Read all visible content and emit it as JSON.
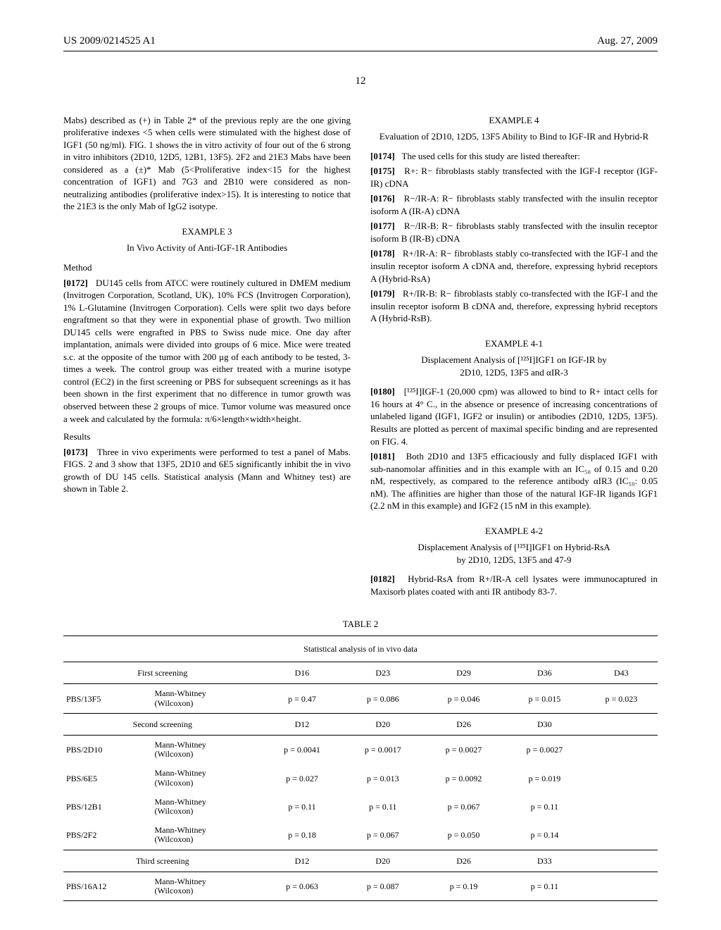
{
  "header": {
    "left": "US 2009/0214525 A1",
    "right": "Aug. 27, 2009"
  },
  "pageNumber": "12",
  "col1": {
    "intro": "Mabs) described as (+) in Table 2* of the previous reply are the one giving proliferative indexes <5 when cells were stimulated with the highest dose of IGF1 (50 ng/ml). FIG. 1 shows the in vitro activity of four out of the 6 strong in vitro inhibitors (2D10, 12D5, 12B1, 13F5). 2F2 and 21E3 Mabs have been considered as a (±)* Mab (5<Proliferative index<15 for the highest concentration of IGF1) and 7G3 and 2B10 were considered as non-neutralizing antibodies (proliferative index>15). It is interesting to notice that the 21E3 is the only Mab of IgG2 isotype.",
    "example3": {
      "title": "EXAMPLE 3",
      "subtitle": "In Vivo Activity of Anti-IGF-1R Antibodies",
      "methodHead": "Method",
      "p0172": "DU145 cells from ATCC were routinely cultured in DMEM medium (Invitrogen Corporation, Scotland, UK), 10% FCS (Invitrogen Corporation), 1% L-Glutamine (Invitrogen Corporation). Cells were split two days before engraftment so that they were in exponential phase of growth. Two million DU145 cells were engrafted in PBS to Swiss nude mice. One day after implantation, animals were divided into groups of 6 mice. Mice were treated s.c. at the opposite of the tumor with 200 μg of each antibody to be tested, 3-times a week. The control group was either treated with a murine isotype control (EC2) in the first screening or PBS for subsequent screenings as it has been shown in the first experiment that no difference in tumor growth was observed between these 2 groups of mice. Tumor volume was measured once a week and calculated by the formula: π/6×length×width×height.",
      "n0172": "[0172]",
      "resultsHead": "Results",
      "p0173": "Three in vivo experiments were performed to test a panel of Mabs. FIGS. 2 and 3 show that 13F5, 2D10 and 6E5 significantly inhibit the in vivo growth of DU 145 cells. Statistical analysis (Mann and Whitney test) are shown in Table 2.",
      "n0173": "[0173]"
    }
  },
  "col2": {
    "example4": {
      "title": "EXAMPLE 4",
      "subtitle": "Evaluation of 2D10, 12D5, 13F5 Ability to Bind to IGF-IR and Hybrid-R",
      "n0174": "[0174]",
      "p0174": "The used cells for this study are listed thereafter:",
      "n0175": "[0175]",
      "p0175": "R+: R− fibroblasts stably transfected with the IGF-I receptor (IGF-IR) cDNA",
      "n0176": "[0176]",
      "p0176": "R−/IR-A: R− fibroblasts stably transfected with the insulin receptor isoform A (IR-A) cDNA",
      "n0177": "[0177]",
      "p0177": "R−/IR-B: R− fibroblasts stably transfected with the insulin receptor isoform B (IR-B) cDNA",
      "n0178": "[0178]",
      "p0178": "R+/IR-A: R− fibroblasts stably co-transfected with the IGF-I and the insulin receptor isoform A cDNA and, therefore, expressing hybrid receptors A (Hybrid-RsA)",
      "n0179": "[0179]",
      "p0179": "R+/IR-B: R− fibroblasts stably co-transfected with the IGF-I and the insulin receptor isoform B cDNA and, therefore, expressing hybrid receptors A (Hybrid-RsB)."
    },
    "example4_1": {
      "title": "EXAMPLE 4-1",
      "subtitle_line1": "Displacement Analysis of [¹²⁵I]IGF1 on IGF-IR by",
      "subtitle_line2": "2D10, 12D5, 13F5 and αIR-3",
      "n0180": "[0180]",
      "p0180": "[¹²⁵I]IGF-1 (20,000 cpm) was allowed to bind to R+ intact cells for 16 hours at 4° C., in the absence or presence of increasing concentrations of unlabeled ligand (IGF1, IGF2 or insulin) or antibodies (2D10, 12D5, 13F5). Results are plotted as percent of maximal specific binding and are represented on FIG. 4.",
      "n0181": "[0181]",
      "p0181": "Both 2D10 and 13F5 efficaciously and fully displaced IGF1 with sub-nanomolar affinities and in this example with an IC₅₀ of 0.15 and 0.20 nM, respectively, as compared to the reference antibody αIR3 (IC₅₀: 0.05 nM). The affinities are higher than those of the natural IGF-IR ligands IGF1 (2.2 nM in this example) and IGF2 (15 nM in this example)."
    },
    "example4_2": {
      "title": "EXAMPLE 4-2",
      "subtitle_line1": "Displacement Analysis of [¹²⁵I]IGF1 on Hybrid-RsA",
      "subtitle_line2": "by 2D10, 12D5, 13F5 and 47-9",
      "n0182": "[0182]",
      "p0182": "Hybrid-RsA from R+/IR-A cell lysates were immunocaptured in Maxisorb plates coated with anti IR antibody 83-7."
    }
  },
  "table2": {
    "caption": "TABLE 2",
    "title": "Statistical analysis of in vivo data",
    "sections": [
      {
        "label": "First screening",
        "headers": [
          "D16",
          "D23",
          "D29",
          "D36",
          "D43"
        ],
        "rows": [
          {
            "name": "PBS/13F5",
            "test": "Mann-Whitney (Wilcoxon)",
            "vals": [
              "p = 0.47",
              "p = 0.086",
              "p = 0.046",
              "p = 0.015",
              "p = 0.023"
            ]
          }
        ]
      },
      {
        "label": "Second screening",
        "headers": [
          "D12",
          "D20",
          "D26",
          "D30"
        ],
        "rows": [
          {
            "name": "PBS/2D10",
            "test": "Mann-Whitney (Wilcoxon)",
            "vals": [
              "p = 0.0041",
              "p = 0.0017",
              "p = 0.0027",
              "p = 0.0027"
            ]
          },
          {
            "name": "PBS/6E5",
            "test": "Mann-Whitney (Wilcoxon)",
            "vals": [
              "p = 0.027",
              "p = 0.013",
              "p = 0.0092",
              "p = 0.019"
            ]
          },
          {
            "name": "PBS/12B1",
            "test": "Mann-Whitney (Wilcoxon)",
            "vals": [
              "p = 0.11",
              "p = 0.11",
              "p = 0.067",
              "p = 0.11"
            ]
          },
          {
            "name": "PBS/2F2",
            "test": "Mann-Whitney (Wilcoxon)",
            "vals": [
              "p = 0.18",
              "p = 0.067",
              "p = 0.050",
              "p = 0.14"
            ]
          }
        ]
      },
      {
        "label": "Third screening",
        "headers": [
          "D12",
          "D20",
          "D26",
          "D33"
        ],
        "rows": [
          {
            "name": "PBS/16A12",
            "test": "Mann-Whitney (Wilcoxon)",
            "vals": [
              "p = 0.063",
              "p = 0.087",
              "p = 0.19",
              "p = 0.11"
            ]
          }
        ]
      }
    ]
  }
}
